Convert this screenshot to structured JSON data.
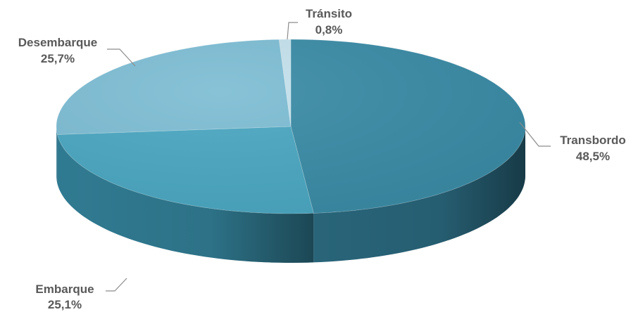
{
  "chart_data": {
    "type": "pie",
    "title": "",
    "labels": [
      "Transbordo",
      "Embarque",
      "Desembarque",
      "Tránsito"
    ],
    "values": [
      48.5,
      25.1,
      25.7,
      0.8
    ],
    "value_labels": [
      "48,5%",
      "25,1%",
      "25,7%",
      "0,8%"
    ],
    "colors": [
      "#3a8ba6",
      "#4aa7c1",
      "#7dbdd4",
      "#c4e1ec"
    ],
    "side_colors": [
      "#2b6a80",
      "#338199",
      "#5a9db5",
      "#a9cfdd"
    ],
    "legend": "none",
    "style": "3d"
  }
}
